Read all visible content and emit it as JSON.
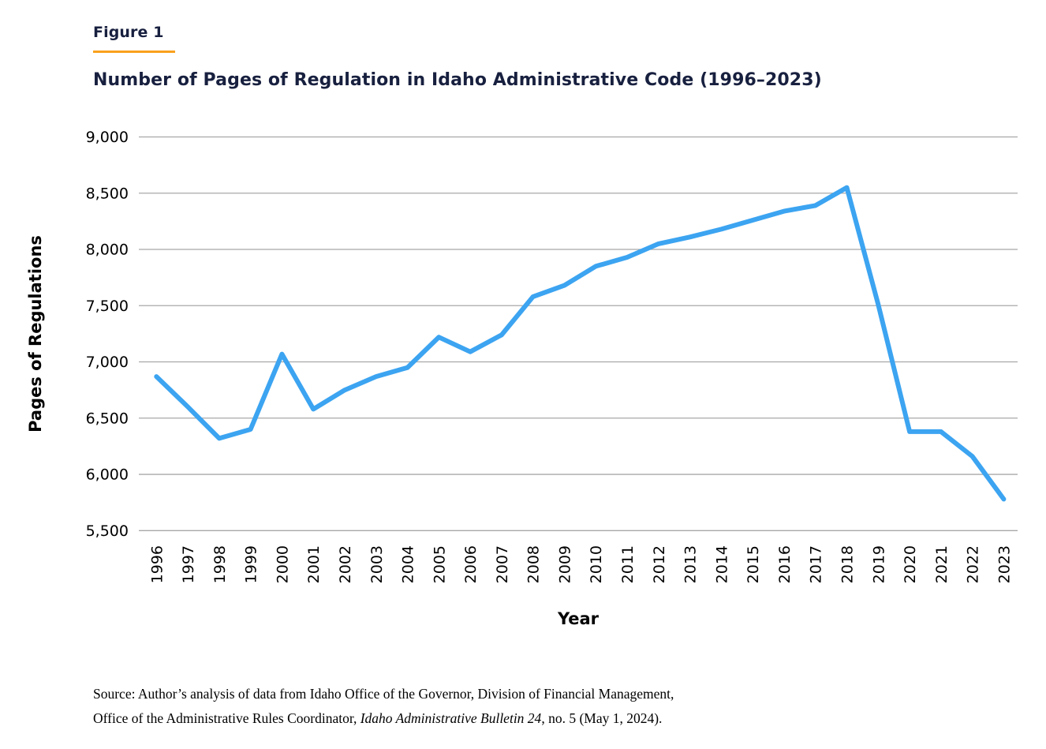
{
  "figure_label": "Figure 1",
  "title": "Number of Pages of Regulation in Idaho Administrative Code (1996–2023)",
  "source": {
    "line1": "Source: Author’s analysis of data from Idaho Office of the Governor, Division of Financial Management,",
    "line2_prefix": "Office of the Administrative Rules Coordinator, ",
    "line2_italic": "Idaho Administrative Bulletin 24",
    "line2_suffix": ", no. 5 (May 1, 2024)."
  },
  "colors": {
    "title_navy": "#18203F",
    "accent_orange": "#F9A11D",
    "line_blue": "#3CA4F1",
    "gridline": "#A8A8A8",
    "text_black": "#000000"
  },
  "chart_data": {
    "type": "line",
    "title": "Number of Pages of Regulation in Idaho Administrative Code (1996–2023)",
    "xlabel": "Year",
    "ylabel": "Pages of Regulations",
    "ylim": [
      5500,
      9000
    ],
    "ytick_step": 500,
    "ytick_labels": [
      "9,000",
      "8,500",
      "8,000",
      "7,500",
      "7,000",
      "6,500",
      "6,000",
      "5,500"
    ],
    "grid": true,
    "legend": false,
    "x": [
      1996,
      1997,
      1998,
      1999,
      2000,
      2001,
      2002,
      2003,
      2004,
      2005,
      2006,
      2007,
      2008,
      2009,
      2010,
      2011,
      2012,
      2013,
      2014,
      2015,
      2016,
      2017,
      2018,
      2019,
      2020,
      2021,
      2022,
      2023
    ],
    "values": [
      6870,
      6600,
      6320,
      6400,
      7070,
      6580,
      6750,
      6870,
      6950,
      7220,
      7090,
      7240,
      7580,
      7680,
      7850,
      7930,
      8050,
      8110,
      8180,
      8260,
      8340,
      8390,
      8550,
      7510,
      6380,
      6380,
      6160,
      5780
    ],
    "series_name": "Pages of Regulations"
  }
}
